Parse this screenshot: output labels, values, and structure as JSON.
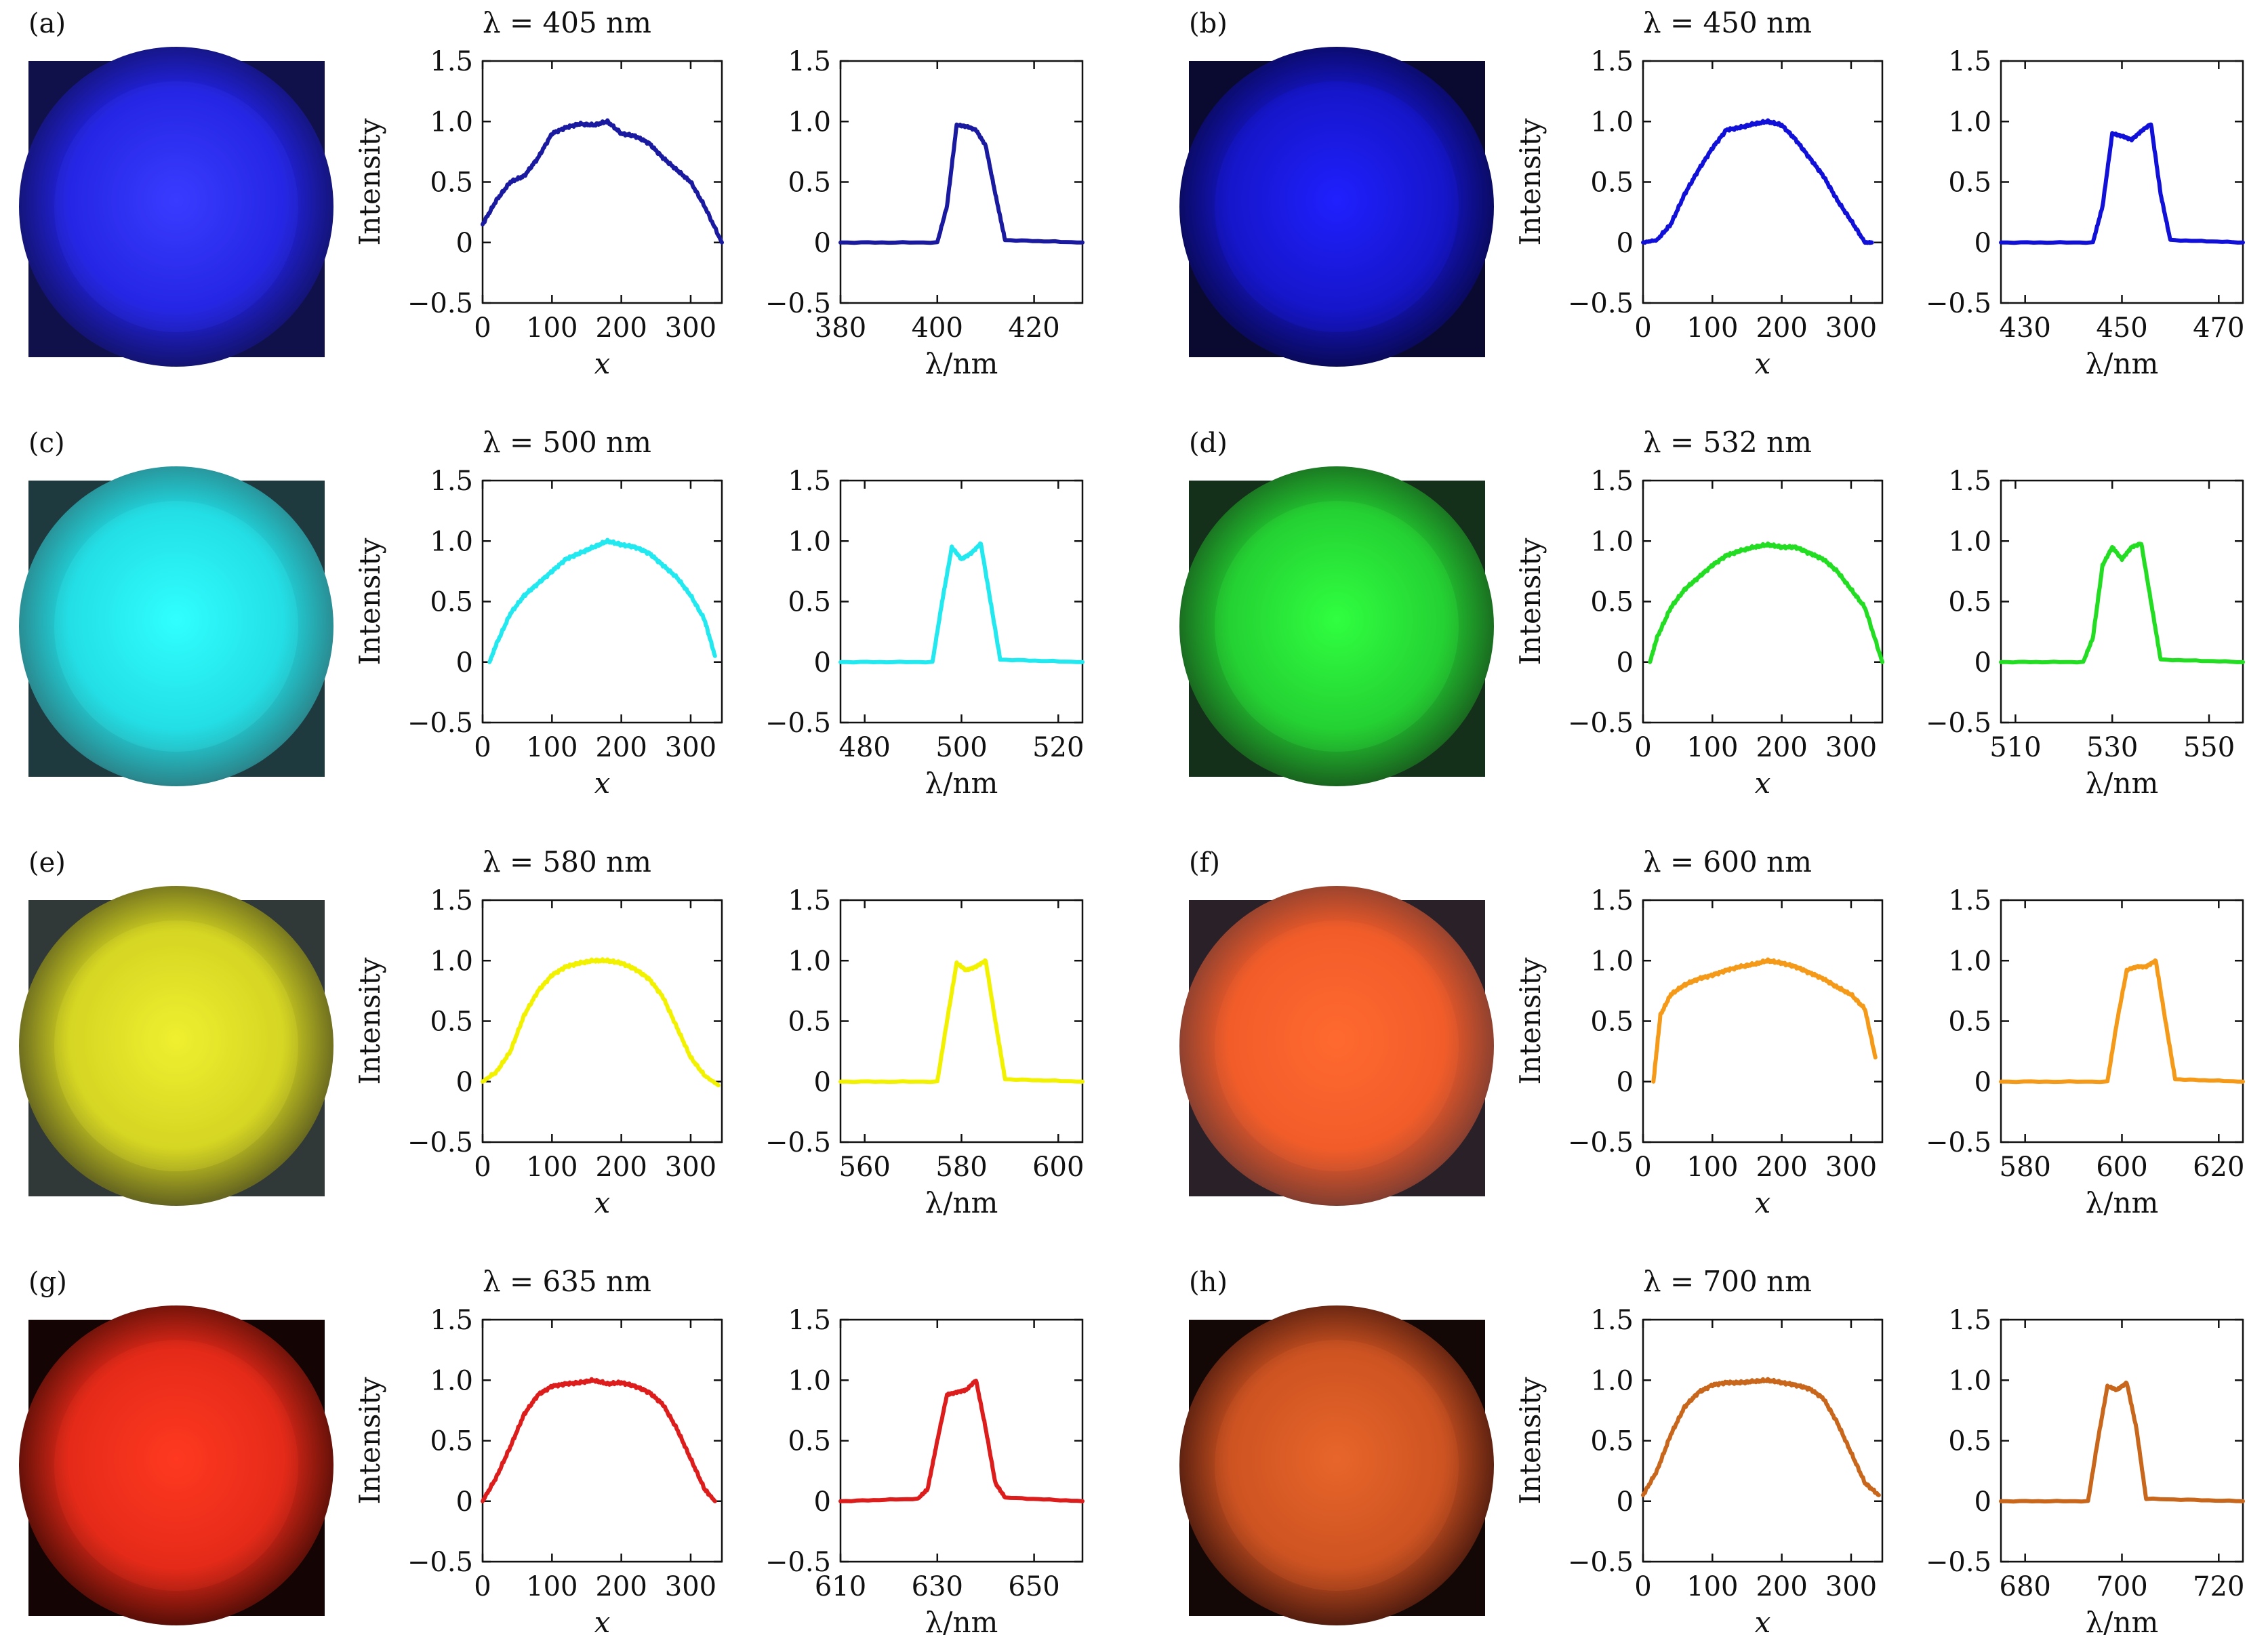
{
  "figure": {
    "description_free": true
  },
  "chart_data": [
    {
      "panel": "(a)",
      "wavelength_nm": 405,
      "title": "λ = 405 nm",
      "color": "#1a1aa0",
      "spot": {
        "core": "#3a3cff",
        "mid": "#2222e0",
        "edge": "#141478",
        "bg": "#10104a"
      },
      "profile": {
        "type": "line",
        "xlabel": "x",
        "ylabel": "Intensity",
        "xlim": [
          0,
          345
        ],
        "ylim": [
          -0.5,
          1.5
        ],
        "xticks": [
          0,
          100,
          200,
          300
        ],
        "yticks": [
          -0.5,
          0,
          0.5,
          1.0,
          1.5
        ],
        "xtick_labels": [
          "0",
          "100",
          "200",
          "300"
        ],
        "ytick_labels": [
          "−0.5",
          "0",
          "0.5",
          "1.0",
          "1.5"
        ],
        "x": [
          0,
          20,
          40,
          60,
          80,
          100,
          120,
          140,
          160,
          180,
          200,
          220,
          240,
          260,
          280,
          300,
          320,
          345
        ],
        "y": [
          0.15,
          0.35,
          0.5,
          0.55,
          0.7,
          0.9,
          0.95,
          0.98,
          0.97,
          1.0,
          0.9,
          0.88,
          0.82,
          0.7,
          0.6,
          0.5,
          0.3,
          0.0
        ]
      },
      "spectrum": {
        "type": "line",
        "xlabel": "λ/nm",
        "ylabel": "",
        "xlim": [
          380,
          430
        ],
        "ylim": [
          -0.5,
          1.5
        ],
        "xticks": [
          380,
          400,
          420
        ],
        "yticks": [
          -0.5,
          0,
          0.5,
          1.0,
          1.5
        ],
        "xtick_labels": [
          "380",
          "400",
          "420"
        ],
        "ytick_labels": [
          "−0.5",
          "0",
          "0.5",
          "1.0",
          "1.5"
        ],
        "x": [
          380,
          400,
          402,
          404,
          406,
          408,
          410,
          412,
          414,
          430
        ],
        "y": [
          0,
          0,
          0.3,
          0.97,
          0.96,
          0.93,
          0.8,
          0.4,
          0.02,
          0
        ]
      }
    },
    {
      "panel": "(b)",
      "wavelength_nm": 450,
      "title": "λ = 450 nm",
      "color": "#1010d8",
      "spot": {
        "core": "#2020ff",
        "mid": "#1414c0",
        "edge": "#0a0a60",
        "bg": "#0a0a30"
      },
      "profile": {
        "type": "line",
        "xlabel": "x",
        "ylabel": "Intensity",
        "xlim": [
          0,
          345
        ],
        "ylim": [
          -0.5,
          1.5
        ],
        "xticks": [
          0,
          100,
          200,
          300
        ],
        "yticks": [
          -0.5,
          0,
          0.5,
          1.0,
          1.5
        ],
        "xtick_labels": [
          "0",
          "100",
          "200",
          "300"
        ],
        "ytick_labels": [
          "−0.5",
          "0",
          "0.5",
          "1.0",
          "1.5"
        ],
        "x": [
          0,
          20,
          40,
          60,
          80,
          100,
          120,
          140,
          160,
          180,
          200,
          220,
          240,
          260,
          280,
          300,
          320,
          330
        ],
        "y": [
          0,
          0.02,
          0.15,
          0.4,
          0.6,
          0.78,
          0.93,
          0.95,
          0.98,
          1.0,
          0.97,
          0.85,
          0.7,
          0.55,
          0.35,
          0.18,
          0.0,
          0.0
        ]
      },
      "spectrum": {
        "type": "line",
        "xlabel": "λ/nm",
        "ylabel": "",
        "xlim": [
          425,
          475
        ],
        "ylim": [
          -0.5,
          1.5
        ],
        "xticks": [
          430,
          450,
          470
        ],
        "yticks": [
          -0.5,
          0,
          0.5,
          1.0,
          1.5
        ],
        "xtick_labels": [
          "430",
          "450",
          "470"
        ],
        "ytick_labels": [
          "−0.5",
          "0",
          "0.5",
          "1.0",
          "1.5"
        ],
        "x": [
          425,
          444,
          446,
          448,
          450,
          452,
          454,
          456,
          458,
          460,
          475
        ],
        "y": [
          0,
          0,
          0.3,
          0.9,
          0.88,
          0.85,
          0.92,
          0.98,
          0.4,
          0.02,
          0
        ]
      }
    },
    {
      "panel": "(c)",
      "wavelength_nm": 500,
      "title": "λ = 500 nm",
      "color": "#22e8f0",
      "spot": {
        "core": "#30ffff",
        "mid": "#20d8e0",
        "edge": "#2a8a90",
        "bg": "#1e3a3e"
      },
      "profile": {
        "type": "line",
        "xlabel": "x",
        "ylabel": "Intensity",
        "xlim": [
          0,
          345
        ],
        "ylim": [
          -0.5,
          1.5
        ],
        "xticks": [
          0,
          100,
          200,
          300
        ],
        "yticks": [
          -0.5,
          0,
          0.5,
          1.0,
          1.5
        ],
        "xtick_labels": [
          "0",
          "100",
          "200",
          "300"
        ],
        "ytick_labels": [
          "−0.5",
          "0",
          "0.5",
          "1.0",
          "1.5"
        ],
        "x": [
          10,
          20,
          40,
          60,
          80,
          100,
          120,
          140,
          160,
          180,
          200,
          220,
          240,
          260,
          280,
          300,
          320,
          335
        ],
        "y": [
          0.0,
          0.15,
          0.4,
          0.55,
          0.65,
          0.75,
          0.85,
          0.9,
          0.95,
          1.0,
          0.97,
          0.95,
          0.9,
          0.8,
          0.7,
          0.55,
          0.35,
          0.05
        ]
      },
      "spectrum": {
        "type": "line",
        "xlabel": "λ/nm",
        "ylabel": "",
        "xlim": [
          475,
          525
        ],
        "ylim": [
          -0.5,
          1.5
        ],
        "xticks": [
          480,
          500,
          520
        ],
        "yticks": [
          -0.5,
          0,
          0.5,
          1.0,
          1.5
        ],
        "xtick_labels": [
          "480",
          "500",
          "520"
        ],
        "ytick_labels": [
          "−0.5",
          "0",
          "0.5",
          "1.0",
          "1.5"
        ],
        "x": [
          475,
          494,
          496,
          498,
          500,
          502,
          504,
          506,
          508,
          525
        ],
        "y": [
          0,
          0,
          0.5,
          0.95,
          0.85,
          0.9,
          0.98,
          0.5,
          0.02,
          0
        ]
      }
    },
    {
      "panel": "(d)",
      "wavelength_nm": 532,
      "title": "λ = 532 nm",
      "color": "#22dd22",
      "spot": {
        "core": "#30ff40",
        "mid": "#22c830",
        "edge": "#1a6a20",
        "bg": "#14301a"
      },
      "profile": {
        "type": "line",
        "xlabel": "x",
        "ylabel": "Intensity",
        "xlim": [
          0,
          345
        ],
        "ylim": [
          -0.5,
          1.5
        ],
        "xticks": [
          0,
          100,
          200,
          300
        ],
        "yticks": [
          -0.5,
          0,
          0.5,
          1.0,
          1.5
        ],
        "xtick_labels": [
          "0",
          "100",
          "200",
          "300"
        ],
        "ytick_labels": [
          "−0.5",
          "0",
          "0.5",
          "1.0",
          "1.5"
        ],
        "x": [
          10,
          20,
          40,
          60,
          80,
          100,
          120,
          140,
          160,
          180,
          200,
          220,
          240,
          260,
          280,
          300,
          320,
          345
        ],
        "y": [
          0.0,
          0.2,
          0.45,
          0.6,
          0.7,
          0.8,
          0.88,
          0.92,
          0.95,
          0.97,
          0.95,
          0.95,
          0.9,
          0.85,
          0.75,
          0.6,
          0.45,
          0.0
        ]
      },
      "spectrum": {
        "type": "line",
        "xlabel": "λ/nm",
        "ylabel": "",
        "xlim": [
          507,
          557
        ],
        "ylim": [
          -0.5,
          1.5
        ],
        "xticks": [
          510,
          530,
          550
        ],
        "yticks": [
          -0.5,
          0,
          0.5,
          1.0,
          1.5
        ],
        "xtick_labels": [
          "510",
          "530",
          "550"
        ],
        "ytick_labels": [
          "−0.5",
          "0",
          "0.5",
          "1.0",
          "1.5"
        ],
        "x": [
          507,
          524,
          526,
          528,
          530,
          532,
          534,
          536,
          538,
          540,
          557
        ],
        "y": [
          0,
          0,
          0.2,
          0.8,
          0.95,
          0.85,
          0.95,
          0.98,
          0.5,
          0.02,
          0
        ]
      }
    },
    {
      "panel": "(e)",
      "wavelength_nm": 580,
      "title": "λ = 580 nm",
      "color": "#f2f200",
      "spot": {
        "core": "#f0f030",
        "mid": "#d0d020",
        "edge": "#6a6a20",
        "bg": "#303838"
      },
      "profile": {
        "type": "line",
        "xlabel": "x",
        "ylabel": "Intensity",
        "xlim": [
          0,
          345
        ],
        "ylim": [
          -0.5,
          1.5
        ],
        "xticks": [
          0,
          100,
          200,
          300
        ],
        "yticks": [
          -0.5,
          0,
          0.5,
          1.0,
          1.5
        ],
        "xtick_labels": [
          "0",
          "100",
          "200",
          "300"
        ],
        "ytick_labels": [
          "−0.5",
          "0",
          "0.5",
          "1.0",
          "1.5"
        ],
        "x": [
          0,
          20,
          40,
          60,
          80,
          100,
          120,
          140,
          160,
          180,
          200,
          220,
          240,
          260,
          280,
          300,
          320,
          340
        ],
        "y": [
          0.0,
          0.08,
          0.25,
          0.55,
          0.75,
          0.88,
          0.95,
          0.98,
          1.0,
          1.0,
          0.98,
          0.93,
          0.85,
          0.7,
          0.45,
          0.2,
          0.05,
          -0.03
        ]
      },
      "spectrum": {
        "type": "line",
        "xlabel": "λ/nm",
        "ylabel": "",
        "xlim": [
          555,
          605
        ],
        "ylim": [
          -0.5,
          1.5
        ],
        "xticks": [
          560,
          580,
          600
        ],
        "yticks": [
          -0.5,
          0,
          0.5,
          1.0,
          1.5
        ],
        "xtick_labels": [
          "560",
          "580",
          "600"
        ],
        "ytick_labels": [
          "−0.5",
          "0",
          "0.5",
          "1.0",
          "1.5"
        ],
        "x": [
          555,
          575,
          577,
          579,
          581,
          583,
          585,
          587,
          589,
          605
        ],
        "y": [
          0,
          0,
          0.5,
          0.98,
          0.92,
          0.95,
          1.0,
          0.5,
          0.02,
          0
        ]
      }
    },
    {
      "panel": "(f)",
      "wavelength_nm": 600,
      "title": "λ = 600 nm",
      "color": "#f59a18",
      "spot": {
        "core": "#ff6a30",
        "mid": "#f05a28",
        "edge": "#8a4030",
        "bg": "#2a2028"
      },
      "profile": {
        "type": "line",
        "xlabel": "x",
        "ylabel": "Intensity",
        "xlim": [
          0,
          345
        ],
        "ylim": [
          -0.5,
          1.5
        ],
        "xticks": [
          0,
          100,
          200,
          300
        ],
        "yticks": [
          -0.5,
          0,
          0.5,
          1.0,
          1.5
        ],
        "xtick_labels": [
          "0",
          "100",
          "200",
          "300"
        ],
        "ytick_labels": [
          "−0.5",
          "0",
          "0.5",
          "1.0",
          "1.5"
        ],
        "x": [
          15,
          25,
          40,
          60,
          80,
          100,
          120,
          140,
          160,
          180,
          200,
          220,
          240,
          260,
          280,
          300,
          320,
          335
        ],
        "y": [
          0.0,
          0.55,
          0.72,
          0.8,
          0.85,
          0.88,
          0.92,
          0.95,
          0.97,
          1.0,
          0.98,
          0.95,
          0.9,
          0.85,
          0.78,
          0.72,
          0.6,
          0.2
        ]
      },
      "spectrum": {
        "type": "line",
        "xlabel": "λ/nm",
        "ylabel": "",
        "xlim": [
          575,
          625
        ],
        "ylim": [
          -0.5,
          1.5
        ],
        "xticks": [
          580,
          600,
          620
        ],
        "yticks": [
          -0.5,
          0,
          0.5,
          1.0,
          1.5
        ],
        "xtick_labels": [
          "580",
          "600",
          "620"
        ],
        "ytick_labels": [
          "−0.5",
          "0",
          "0.5",
          "1.0",
          "1.5"
        ],
        "x": [
          575,
          597,
          599,
          601,
          603,
          605,
          607,
          609,
          611,
          625
        ],
        "y": [
          0,
          0,
          0.5,
          0.92,
          0.95,
          0.95,
          1.0,
          0.5,
          0.02,
          0
        ]
      }
    },
    {
      "panel": "(g)",
      "wavelength_nm": 635,
      "title": "λ = 635 nm",
      "color": "#dd1c1c",
      "spot": {
        "core": "#ff3a20",
        "mid": "#e02818",
        "edge": "#601008",
        "bg": "#140404"
      },
      "profile": {
        "type": "line",
        "xlabel": "x",
        "ylabel": "Intensity",
        "xlim": [
          0,
          345
        ],
        "ylim": [
          -0.5,
          1.5
        ],
        "xticks": [
          0,
          100,
          200,
          300
        ],
        "yticks": [
          -0.5,
          0,
          0.5,
          1.0,
          1.5
        ],
        "xtick_labels": [
          "0",
          "100",
          "200",
          "300"
        ],
        "ytick_labels": [
          "−0.5",
          "0",
          "0.5",
          "1.0",
          "1.5"
        ],
        "x": [
          0,
          20,
          40,
          60,
          80,
          100,
          120,
          140,
          160,
          180,
          200,
          220,
          240,
          260,
          280,
          300,
          320,
          335
        ],
        "y": [
          0.0,
          0.2,
          0.45,
          0.72,
          0.88,
          0.95,
          0.97,
          0.98,
          1.0,
          0.97,
          0.98,
          0.95,
          0.9,
          0.8,
          0.6,
          0.35,
          0.1,
          0.0
        ]
      },
      "spectrum": {
        "type": "line",
        "xlabel": "λ/nm",
        "ylabel": "",
        "xlim": [
          610,
          660
        ],
        "ylim": [
          -0.5,
          1.5
        ],
        "xticks": [
          610,
          630,
          650
        ],
        "yticks": [
          -0.5,
          0,
          0.5,
          1.0,
          1.5
        ],
        "xtick_labels": [
          "610",
          "630",
          "650"
        ],
        "ytick_labels": [
          "−0.5",
          "0",
          "0.5",
          "1.0",
          "1.5"
        ],
        "x": [
          610,
          626,
          628,
          630,
          632,
          634,
          636,
          638,
          640,
          642,
          644,
          660
        ],
        "y": [
          0,
          0.02,
          0.1,
          0.5,
          0.88,
          0.9,
          0.92,
          1.0,
          0.6,
          0.15,
          0.03,
          0
        ]
      }
    },
    {
      "panel": "(h)",
      "wavelength_nm": 700,
      "title": "λ = 700 nm",
      "color": "#c8661c",
      "spot": {
        "core": "#e8662a",
        "mid": "#c85020",
        "edge": "#5a2010",
        "bg": "#140806"
      },
      "profile": {
        "type": "line",
        "xlabel": "x",
        "ylabel": "Intensity",
        "xlim": [
          0,
          345
        ],
        "ylim": [
          -0.5,
          1.5
        ],
        "xticks": [
          0,
          100,
          200,
          300
        ],
        "yticks": [
          -0.5,
          0,
          0.5,
          1.0,
          1.5
        ],
        "xtick_labels": [
          "0",
          "100",
          "200",
          "300"
        ],
        "ytick_labels": [
          "−0.5",
          "0",
          "0.5",
          "1.0",
          "1.5"
        ],
        "x": [
          0,
          20,
          40,
          60,
          80,
          100,
          120,
          140,
          160,
          180,
          200,
          220,
          240,
          260,
          280,
          300,
          320,
          340
        ],
        "y": [
          0.05,
          0.25,
          0.55,
          0.78,
          0.9,
          0.96,
          0.98,
          0.98,
          0.99,
          1.0,
          0.98,
          0.96,
          0.93,
          0.85,
          0.65,
          0.4,
          0.15,
          0.05
        ]
      },
      "spectrum": {
        "type": "line",
        "xlabel": "λ/nm",
        "ylabel": "",
        "xlim": [
          675,
          725
        ],
        "ylim": [
          -0.5,
          1.5
        ],
        "xticks": [
          680,
          700,
          720
        ],
        "yticks": [
          -0.5,
          0,
          0.5,
          1.0,
          1.5
        ],
        "xtick_labels": [
          "680",
          "700",
          "720"
        ],
        "ytick_labels": [
          "−0.5",
          "0",
          "0.5",
          "1.0",
          "1.5"
        ],
        "x": [
          675,
          693,
          695,
          697,
          699,
          701,
          703,
          705,
          725
        ],
        "y": [
          0,
          0,
          0.5,
          0.95,
          0.92,
          0.98,
          0.6,
          0.02,
          0
        ]
      }
    }
  ]
}
